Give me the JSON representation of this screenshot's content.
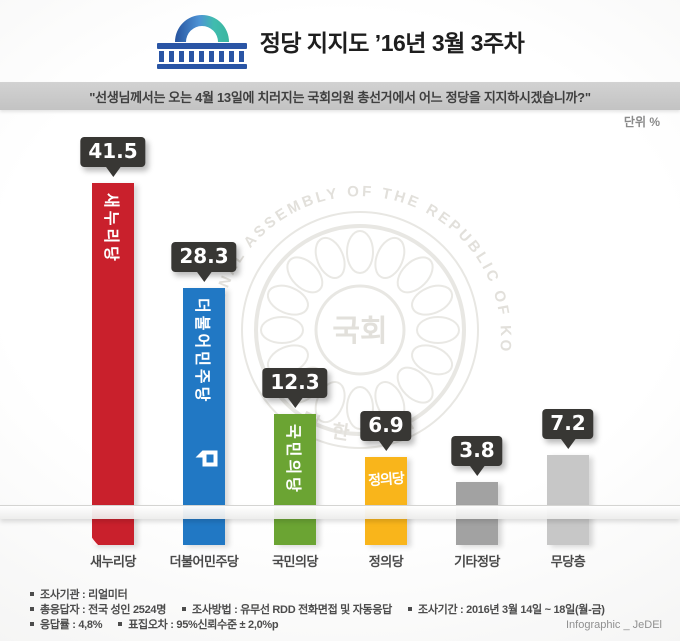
{
  "header": {
    "title": "정당 지지도 ’16년 3월 3주차",
    "icon": "assembly-building-icon"
  },
  "question": "\"선생님께서는 오는 4월 13일에 치러지는 국회의원 총선거에서 어느 정당을 지지하시겠습니까?\"",
  "unit_label": "단위 %",
  "chart_data": {
    "type": "bar",
    "title": "정당 지지도 ’16년 3월 3주차",
    "unit": "%",
    "categories": [
      "새누리당",
      "더불어민주당",
      "국민의당",
      "정의당",
      "기타정당",
      "무당층"
    ],
    "values": [
      41.5,
      28.3,
      12.3,
      6.9,
      3.8,
      7.2
    ],
    "colors": [
      "#c9202c",
      "#2178c4",
      "#6ba433",
      "#f9b51b",
      "#a2a2a2",
      "#c7c7c7"
    ],
    "bar_text_style": [
      "vertical",
      "vertical",
      "vertical",
      "horizontal",
      "none",
      "none"
    ],
    "logos": [
      "saenuri-swoosh",
      "minjoo-mark",
      null,
      null,
      null,
      null
    ],
    "value_label_color": "#383734",
    "ylim": [
      0,
      45
    ],
    "grid": false,
    "legend": "none"
  },
  "watermark": {
    "ring_text": "THE NATIONAL ASSEMBLY OF THE REPUBLIC OF KOREA",
    "center_text": "국회",
    "bottom_text": "대 한 민 국"
  },
  "footer": {
    "rows": [
      [
        {
          "text": "조사기관 : 리얼미터"
        }
      ],
      [
        {
          "text": "총응답자 : 전국 성인 2524명"
        },
        {
          "text": "조사방법 : 유무선 RDD 전화면접 및 자동응답"
        },
        {
          "text": "조사기간 : 2016년 3월 14일 ~ 18일(월-금)"
        }
      ],
      [
        {
          "text": "응답률 : 4,8%"
        },
        {
          "text": "표집오차 : 95%신뢰수준 ± 2,0%p"
        }
      ]
    ],
    "credit": "Infographic _ JeDEl"
  }
}
